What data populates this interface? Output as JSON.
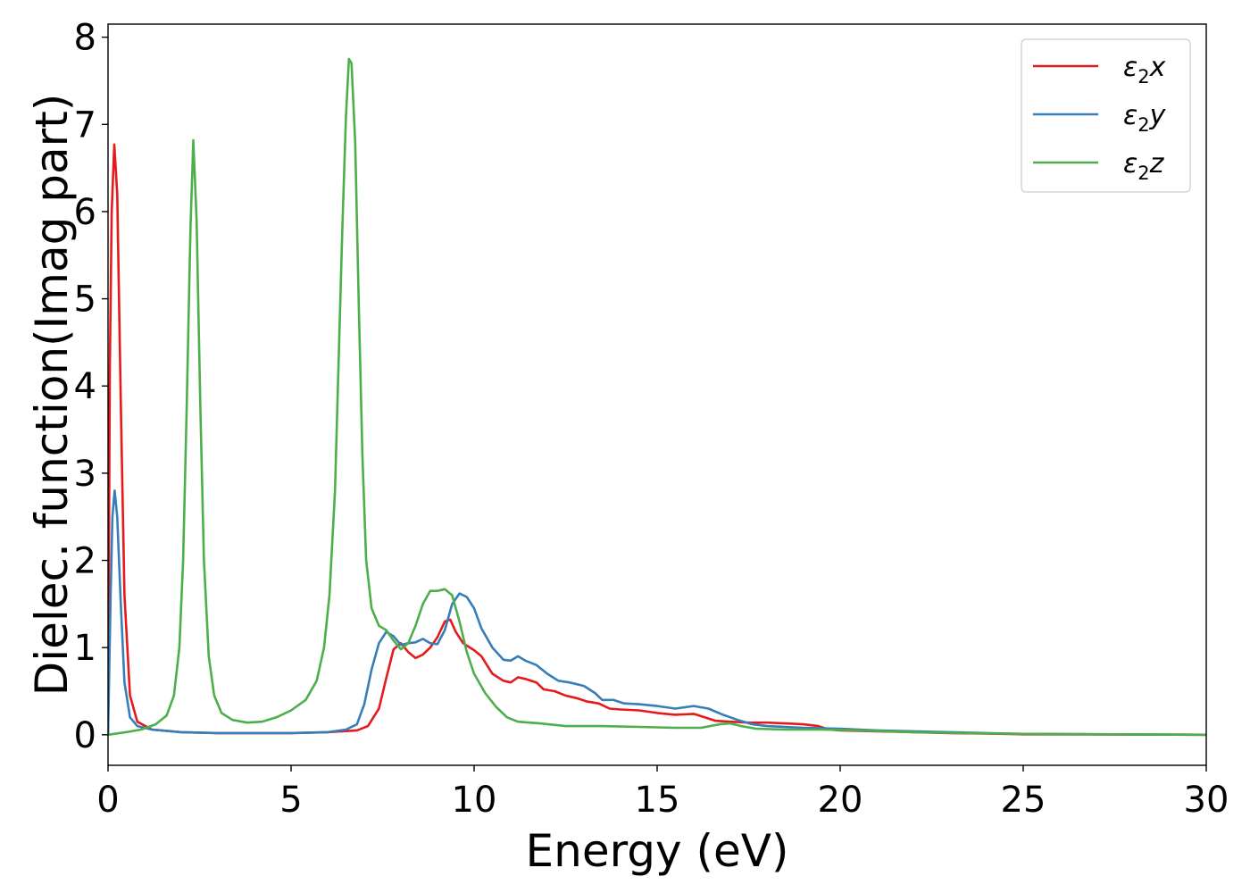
{
  "chart_data": {
    "type": "line",
    "xlabel": "Energy (eV)",
    "ylabel": "Dielec. function(Imag part)",
    "xlim": [
      0,
      30
    ],
    "ylim": [
      -0.35,
      8.15
    ],
    "xticks": [
      0,
      5,
      10,
      15,
      20,
      25,
      30
    ],
    "yticks": [
      0,
      1,
      2,
      3,
      4,
      5,
      6,
      7,
      8
    ],
    "grid": false,
    "legend_position": "top-right",
    "series": [
      {
        "name": "ε2x",
        "legend_base": "ε",
        "legend_sub": "2",
        "legend_suffix": "x",
        "color": "#e41a1c",
        "points": [
          [
            0,
            0
          ],
          [
            0.05,
            4.2
          ],
          [
            0.1,
            6.0
          ],
          [
            0.17,
            6.77
          ],
          [
            0.25,
            6.2
          ],
          [
            0.35,
            3.8
          ],
          [
            0.45,
            1.6
          ],
          [
            0.6,
            0.45
          ],
          [
            0.8,
            0.15
          ],
          [
            1.2,
            0.06
          ],
          [
            2,
            0.03
          ],
          [
            3,
            0.02
          ],
          [
            4,
            0.02
          ],
          [
            5,
            0.02
          ],
          [
            6,
            0.03
          ],
          [
            6.8,
            0.05
          ],
          [
            7.1,
            0.1
          ],
          [
            7.4,
            0.3
          ],
          [
            7.6,
            0.65
          ],
          [
            7.8,
            0.98
          ],
          [
            8.0,
            1.05
          ],
          [
            8.2,
            0.95
          ],
          [
            8.4,
            0.88
          ],
          [
            8.6,
            0.92
          ],
          [
            8.8,
            1.0
          ],
          [
            9.0,
            1.12
          ],
          [
            9.2,
            1.3
          ],
          [
            9.35,
            1.32
          ],
          [
            9.5,
            1.18
          ],
          [
            9.7,
            1.05
          ],
          [
            10.0,
            0.97
          ],
          [
            10.2,
            0.9
          ],
          [
            10.5,
            0.7
          ],
          [
            10.8,
            0.62
          ],
          [
            11.0,
            0.6
          ],
          [
            11.2,
            0.66
          ],
          [
            11.4,
            0.64
          ],
          [
            11.7,
            0.6
          ],
          [
            11.9,
            0.52
          ],
          [
            12.2,
            0.5
          ],
          [
            12.5,
            0.45
          ],
          [
            12.8,
            0.42
          ],
          [
            13.1,
            0.38
          ],
          [
            13.4,
            0.36
          ],
          [
            13.7,
            0.3
          ],
          [
            14.0,
            0.29
          ],
          [
            14.5,
            0.28
          ],
          [
            15.0,
            0.25
          ],
          [
            15.5,
            0.23
          ],
          [
            16.0,
            0.24
          ],
          [
            16.3,
            0.2
          ],
          [
            16.6,
            0.16
          ],
          [
            17.0,
            0.15
          ],
          [
            17.5,
            0.14
          ],
          [
            18.0,
            0.14
          ],
          [
            18.5,
            0.13
          ],
          [
            19.0,
            0.12
          ],
          [
            19.4,
            0.1
          ],
          [
            19.7,
            0.06
          ],
          [
            20.0,
            0.05
          ],
          [
            21,
            0.04
          ],
          [
            22,
            0.03
          ],
          [
            23,
            0.02
          ],
          [
            24,
            0.015
          ],
          [
            25,
            0.005
          ],
          [
            30,
            0.0
          ]
        ]
      },
      {
        "name": "ε2y",
        "legend_base": "ε",
        "legend_sub": "2",
        "legend_suffix": "y",
        "color": "#377eb8",
        "points": [
          [
            0,
            0
          ],
          [
            0.07,
            1.6
          ],
          [
            0.12,
            2.5
          ],
          [
            0.18,
            2.8
          ],
          [
            0.25,
            2.5
          ],
          [
            0.35,
            1.5
          ],
          [
            0.45,
            0.6
          ],
          [
            0.6,
            0.2
          ],
          [
            0.8,
            0.1
          ],
          [
            1.2,
            0.06
          ],
          [
            2,
            0.03
          ],
          [
            3,
            0.02
          ],
          [
            4,
            0.02
          ],
          [
            5,
            0.02
          ],
          [
            6,
            0.03
          ],
          [
            6.5,
            0.06
          ],
          [
            6.8,
            0.12
          ],
          [
            7.0,
            0.35
          ],
          [
            7.2,
            0.75
          ],
          [
            7.4,
            1.05
          ],
          [
            7.6,
            1.18
          ],
          [
            7.8,
            1.13
          ],
          [
            8.0,
            1.03
          ],
          [
            8.2,
            1.05
          ],
          [
            8.4,
            1.06
          ],
          [
            8.6,
            1.1
          ],
          [
            8.8,
            1.05
          ],
          [
            9.0,
            1.04
          ],
          [
            9.2,
            1.2
          ],
          [
            9.4,
            1.5
          ],
          [
            9.6,
            1.62
          ],
          [
            9.8,
            1.58
          ],
          [
            10.0,
            1.45
          ],
          [
            10.2,
            1.22
          ],
          [
            10.5,
            1.0
          ],
          [
            10.8,
            0.86
          ],
          [
            11.0,
            0.85
          ],
          [
            11.2,
            0.9
          ],
          [
            11.4,
            0.85
          ],
          [
            11.7,
            0.8
          ],
          [
            12.0,
            0.7
          ],
          [
            12.3,
            0.62
          ],
          [
            12.6,
            0.6
          ],
          [
            13.0,
            0.56
          ],
          [
            13.3,
            0.48
          ],
          [
            13.5,
            0.4
          ],
          [
            13.8,
            0.4
          ],
          [
            14.1,
            0.36
          ],
          [
            14.5,
            0.35
          ],
          [
            15.0,
            0.33
          ],
          [
            15.5,
            0.3
          ],
          [
            16.0,
            0.33
          ],
          [
            16.4,
            0.3
          ],
          [
            16.8,
            0.23
          ],
          [
            17.2,
            0.17
          ],
          [
            17.6,
            0.12
          ],
          [
            18.0,
            0.1
          ],
          [
            19.0,
            0.08
          ],
          [
            20.0,
            0.07
          ],
          [
            21,
            0.05
          ],
          [
            22,
            0.04
          ],
          [
            23,
            0.03
          ],
          [
            24,
            0.02
          ],
          [
            25,
            0.01
          ],
          [
            30,
            0.0
          ]
        ]
      },
      {
        "name": "ε2z",
        "legend_base": "ε",
        "legend_sub": "2",
        "legend_suffix": "z",
        "color": "#4daf4a",
        "points": [
          [
            0,
            0
          ],
          [
            0.5,
            0.03
          ],
          [
            0.9,
            0.06
          ],
          [
            1.3,
            0.12
          ],
          [
            1.6,
            0.22
          ],
          [
            1.8,
            0.45
          ],
          [
            1.95,
            1.0
          ],
          [
            2.05,
            2.0
          ],
          [
            2.15,
            3.8
          ],
          [
            2.25,
            5.8
          ],
          [
            2.33,
            6.82
          ],
          [
            2.42,
            5.9
          ],
          [
            2.52,
            3.8
          ],
          [
            2.62,
            2.0
          ],
          [
            2.75,
            0.9
          ],
          [
            2.9,
            0.45
          ],
          [
            3.1,
            0.25
          ],
          [
            3.4,
            0.17
          ],
          [
            3.8,
            0.14
          ],
          [
            4.2,
            0.15
          ],
          [
            4.6,
            0.2
          ],
          [
            5.0,
            0.28
          ],
          [
            5.4,
            0.4
          ],
          [
            5.7,
            0.62
          ],
          [
            5.9,
            1.0
          ],
          [
            6.05,
            1.6
          ],
          [
            6.2,
            2.8
          ],
          [
            6.3,
            4.3
          ],
          [
            6.4,
            5.8
          ],
          [
            6.5,
            7.1
          ],
          [
            6.58,
            7.75
          ],
          [
            6.65,
            7.7
          ],
          [
            6.75,
            6.8
          ],
          [
            6.85,
            4.9
          ],
          [
            6.95,
            3.2
          ],
          [
            7.05,
            2.0
          ],
          [
            7.2,
            1.45
          ],
          [
            7.4,
            1.25
          ],
          [
            7.6,
            1.2
          ],
          [
            7.8,
            1.08
          ],
          [
            8.0,
            0.98
          ],
          [
            8.2,
            1.05
          ],
          [
            8.4,
            1.25
          ],
          [
            8.6,
            1.5
          ],
          [
            8.8,
            1.65
          ],
          [
            9.0,
            1.65
          ],
          [
            9.2,
            1.67
          ],
          [
            9.4,
            1.6
          ],
          [
            9.6,
            1.3
          ],
          [
            9.8,
            0.95
          ],
          [
            10.0,
            0.7
          ],
          [
            10.3,
            0.48
          ],
          [
            10.6,
            0.32
          ],
          [
            10.9,
            0.2
          ],
          [
            11.2,
            0.15
          ],
          [
            11.8,
            0.13
          ],
          [
            12.5,
            0.1
          ],
          [
            13.5,
            0.1
          ],
          [
            14.5,
            0.09
          ],
          [
            15.5,
            0.08
          ],
          [
            16.2,
            0.08
          ],
          [
            16.7,
            0.12
          ],
          [
            17.0,
            0.13
          ],
          [
            17.3,
            0.1
          ],
          [
            17.7,
            0.07
          ],
          [
            18.5,
            0.06
          ],
          [
            19.5,
            0.06
          ],
          [
            20.5,
            0.05
          ],
          [
            22,
            0.03
          ],
          [
            23.5,
            0.02
          ],
          [
            25,
            0.01
          ],
          [
            30,
            0.0
          ]
        ]
      }
    ]
  }
}
